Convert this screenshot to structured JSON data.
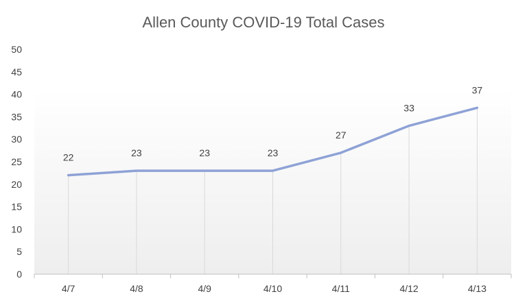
{
  "chart_data": {
    "type": "line",
    "title": "Allen County COVID-19 Total Cases",
    "categories": [
      "4/7",
      "4/8",
      "4/9",
      "4/10",
      "4/11",
      "4/12",
      "4/13"
    ],
    "series": [
      {
        "values": [
          22,
          23,
          23,
          23,
          27,
          33,
          37
        ]
      }
    ],
    "ylim": [
      0,
      50
    ],
    "yticks": [
      0,
      5,
      10,
      15,
      20,
      25,
      30,
      35,
      40,
      45,
      50
    ],
    "data_labels": true,
    "drop_lines": true,
    "grid": false,
    "legend": "none",
    "colors": {
      "line": "#8ea2d6",
      "drop_line": "#d9d9d9",
      "axis": "#bfbfbf",
      "plot_fill_top": "#ffffff",
      "plot_fill_bottom": "#eeeeee"
    }
  }
}
